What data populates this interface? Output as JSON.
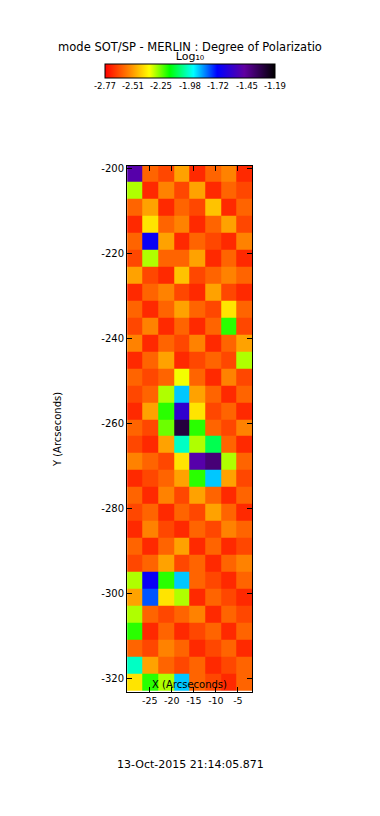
{
  "chart_data": {
    "type": "heatmap",
    "title": "mode SOT/SP - MERLIN : Degree of Polarizatio",
    "x_label": "X (Arcseconds)",
    "y_label": "Y (Arcseconds)",
    "x": [
      -28.4,
      -24.9,
      -21.3,
      -17.8,
      -14.2,
      -10.7,
      -7.1,
      -3.6
    ],
    "y": [
      -201,
      -205,
      -209,
      -213,
      -217,
      -221,
      -225,
      -229,
      -233,
      -237,
      -241,
      -245,
      -249,
      -253,
      -257,
      -261,
      -265,
      -269,
      -273,
      -277,
      -281,
      -285,
      -289,
      -293,
      -297,
      -301,
      -305,
      -309,
      -313,
      -317,
      -321
    ],
    "z": [
      [
        -1.5,
        -2.6,
        -2.65,
        -2.5,
        -2.7,
        -2.6,
        -2.55,
        -2.7
      ],
      [
        -2.3,
        -2.7,
        -2.55,
        -2.65,
        -2.5,
        -2.7,
        -2.6,
        -2.65
      ],
      [
        -2.6,
        -2.5,
        -2.7,
        -2.6,
        -2.65,
        -2.45,
        -2.7,
        -2.6
      ],
      [
        -2.7,
        -2.4,
        -2.6,
        -2.55,
        -2.7,
        -2.6,
        -2.5,
        -2.65
      ],
      [
        -2.6,
        -1.7,
        -2.5,
        -2.7,
        -2.6,
        -2.65,
        -2.7,
        -2.55
      ],
      [
        -2.65,
        -2.3,
        -2.6,
        -2.6,
        -2.5,
        -2.7,
        -2.6,
        -2.7
      ],
      [
        -2.5,
        -2.65,
        -2.7,
        -2.45,
        -2.65,
        -2.6,
        -2.55,
        -2.6
      ],
      [
        -2.7,
        -2.6,
        -2.55,
        -2.65,
        -2.7,
        -2.5,
        -2.65,
        -2.7
      ],
      [
        -2.6,
        -2.7,
        -2.6,
        -2.5,
        -2.6,
        -2.65,
        -2.4,
        -2.6
      ],
      [
        -2.65,
        -2.55,
        -2.7,
        -2.6,
        -2.7,
        -2.6,
        -2.2,
        -2.65
      ],
      [
        -2.55,
        -2.7,
        -2.6,
        -2.65,
        -2.55,
        -2.7,
        -2.6,
        -2.5
      ],
      [
        -2.7,
        -2.6,
        -2.5,
        -2.7,
        -2.65,
        -2.6,
        -2.65,
        -2.3
      ],
      [
        -2.6,
        -2.65,
        -2.6,
        -2.35,
        -2.6,
        -2.7,
        -2.55,
        -2.65
      ],
      [
        -2.65,
        -2.6,
        -2.3,
        -1.9,
        -2.5,
        -2.6,
        -2.7,
        -2.6
      ],
      [
        -2.7,
        -2.5,
        -2.2,
        -1.6,
        -2.4,
        -2.65,
        -2.6,
        -2.7
      ],
      [
        -2.6,
        -2.65,
        -2.25,
        -1.3,
        -2.2,
        -2.6,
        -2.65,
        -2.55
      ],
      [
        -2.65,
        -2.7,
        -2.5,
        -2.0,
        -2.3,
        -2.1,
        -2.6,
        -2.7
      ],
      [
        -2.55,
        -2.6,
        -2.65,
        -2.4,
        -1.5,
        -1.4,
        -2.3,
        -2.6
      ],
      [
        -2.7,
        -2.65,
        -2.6,
        -2.5,
        -2.2,
        -1.9,
        -2.5,
        -2.65
      ],
      [
        -2.6,
        -2.7,
        -2.55,
        -2.65,
        -2.5,
        -2.6,
        -2.7,
        -2.6
      ],
      [
        -2.65,
        -2.6,
        -2.7,
        -2.6,
        -2.65,
        -2.5,
        -2.6,
        -2.7
      ],
      [
        -2.7,
        -2.55,
        -2.65,
        -2.7,
        -2.6,
        -2.65,
        -2.55,
        -2.6
      ],
      [
        -2.6,
        -2.7,
        -2.6,
        -2.5,
        -2.7,
        -2.6,
        -2.7,
        -2.65
      ],
      [
        -2.65,
        -2.6,
        -2.5,
        -2.65,
        -2.6,
        -2.7,
        -2.6,
        -2.55
      ],
      [
        -2.3,
        -1.7,
        -2.2,
        -1.9,
        -2.6,
        -2.65,
        -2.7,
        -2.6
      ],
      [
        -2.5,
        -1.8,
        -2.4,
        -2.3,
        -2.7,
        -2.6,
        -2.65,
        -2.7
      ],
      [
        -2.3,
        -2.6,
        -2.65,
        -2.6,
        -2.55,
        -2.7,
        -2.6,
        -2.65
      ],
      [
        -2.2,
        -2.7,
        -2.6,
        -2.7,
        -2.65,
        -2.6,
        -2.7,
        -2.6
      ],
      [
        -2.6,
        -2.65,
        -2.55,
        -2.6,
        -2.7,
        -2.65,
        -2.6,
        -2.7
      ],
      [
        -2.0,
        -2.5,
        -2.6,
        -2.65,
        -2.6,
        -2.7,
        -2.65,
        -2.6
      ],
      [
        -2.4,
        -2.2,
        -2.3,
        -1.9,
        -2.6,
        -2.65,
        -2.7,
        -2.6
      ]
    ],
    "xlim": [
      -30.2,
      -1.8
    ],
    "ylim": [
      -323.3,
      -199.3
    ],
    "xticks": [
      -25,
      -20,
      -15,
      -10,
      -5
    ],
    "yticks": [
      -320,
      -300,
      -280,
      -260,
      -240,
      -220,
      -200
    ],
    "grid": false,
    "colorbar": {
      "title": "Log₁₀",
      "range": [
        -2.77,
        -1.19
      ],
      "ticks": [
        -2.77,
        -2.51,
        -2.25,
        -1.98,
        -1.72,
        -1.45,
        -1.19
      ]
    },
    "annotations": [
      "13-Oct-2015 21:14:05.871"
    ]
  }
}
